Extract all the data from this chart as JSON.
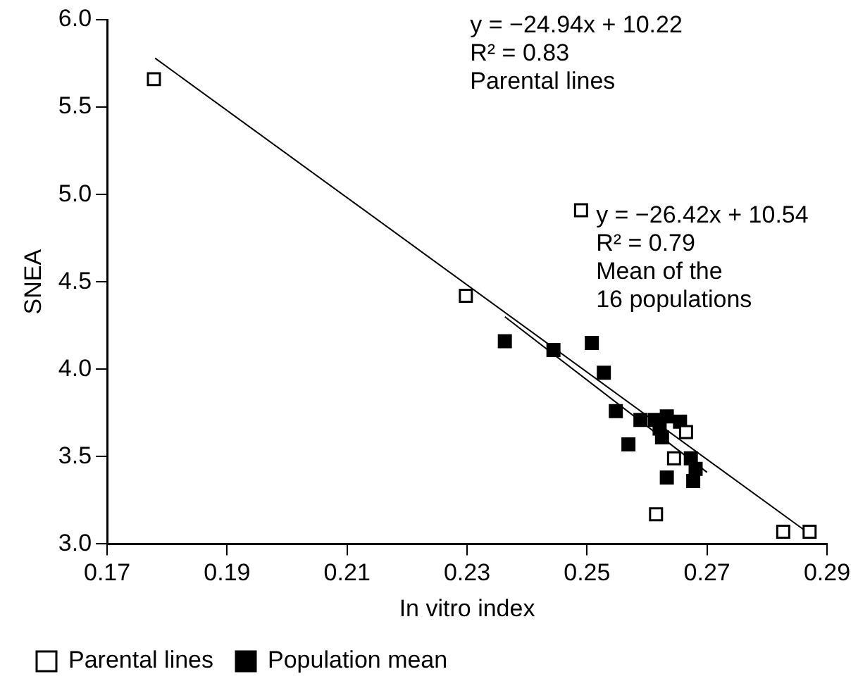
{
  "chart_data": {
    "type": "scatter",
    "xlabel": "In vitro index",
    "ylabel": "SNEA",
    "xlim": [
      0.17,
      0.29
    ],
    "xticks": [
      0.17,
      0.19,
      0.21,
      0.23,
      0.25,
      0.27,
      0.29
    ],
    "ylim": [
      3.0,
      6.0
    ],
    "yticks": [
      {
        "value": 3,
        "label": "3.0"
      },
      3.5,
      {
        "value": 4,
        "label": "4.0"
      },
      4.5,
      {
        "value": 5,
        "label": "5.0"
      },
      5.5,
      {
        "value": 6,
        "label": "6.0"
      }
    ],
    "grid": false,
    "legend": "bottom",
    "marker": "square",
    "series": [
      {
        "name": "Parental lines",
        "color": "#ffffff",
        "x": [
          0.1778,
          0.2298,
          0.249,
          0.2665,
          0.2645,
          0.2615,
          0.2827,
          0.2871
        ],
        "values": [
          5.66,
          4.42,
          4.91,
          3.64,
          3.49,
          3.17,
          3.07,
          3.07
        ]
      },
      {
        "name": "Population mean",
        "color": "#000000",
        "x": [
          0.2363,
          0.2444,
          0.2508,
          0.2528,
          0.2548,
          0.2589,
          0.2613,
          0.2633,
          0.2625,
          0.2621,
          0.2569,
          0.2673,
          0.2681,
          0.2677,
          0.2633,
          0.2655
        ],
        "values": [
          4.16,
          4.11,
          4.15,
          3.98,
          3.76,
          3.71,
          3.71,
          3.73,
          3.61,
          3.66,
          3.57,
          3.49,
          3.43,
          3.36,
          3.38,
          3.7
        ]
      },
      {
        "type": "line",
        "marker": "none",
        "color": "#000000",
        "x": [
          0.178,
          0.287
        ],
        "values": [
          5.78,
          3.06
        ]
      },
      {
        "type": "line",
        "marker": "none",
        "color": "#000000",
        "x": [
          0.2363,
          0.27
        ],
        "values": [
          4.3,
          3.41
        ]
      }
    ],
    "annotations": [
      "y = −24.94x + 10.22\nR² = 0.83\nParental lines",
      "y = −26.42x + 10.54\nR² = 0.79\nMean of the\n16 populations"
    ]
  }
}
